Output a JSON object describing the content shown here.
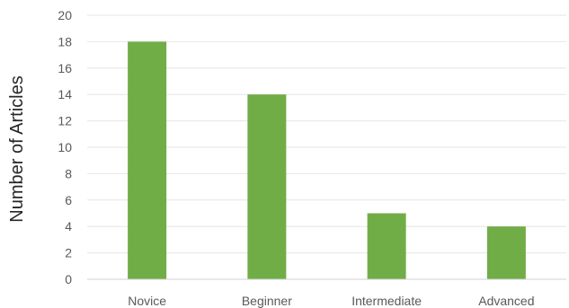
{
  "chart_data": {
    "type": "bar",
    "categories": [
      "Novice",
      "Beginner",
      "Intermediate",
      "Advanced"
    ],
    "values": [
      18,
      14,
      5,
      4
    ],
    "ylabel": "Number of Articles",
    "xlabel": "",
    "ylim": [
      0,
      20
    ],
    "yticks": [
      0,
      2,
      4,
      6,
      8,
      10,
      12,
      14,
      16,
      18,
      20
    ],
    "grid": true,
    "legend": "none",
    "bar_color": "#70ad47"
  }
}
